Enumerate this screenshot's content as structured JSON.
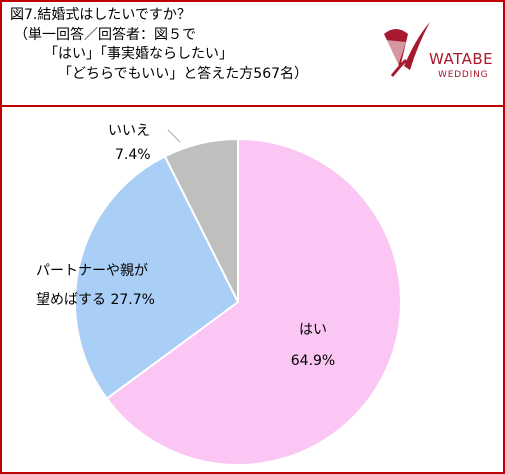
{
  "header": {
    "title_lines": [
      "図7.結婚式はしたいですか？",
      "（単一回答／回答者：図５で",
      "「はい」「事実婚ならしたい」",
      "「どちらでもいい」と答えた方567名）"
    ]
  },
  "logo": {
    "brand": "WATABE",
    "sub": "WEDDING",
    "color": "#a6192e"
  },
  "chart_data": {
    "type": "pie",
    "start": "12 o'clock",
    "direction": "clockwise",
    "slices": [
      {
        "label": "はい",
        "value": 64.9,
        "value_label": "64.9%",
        "color": "#fbc6f3"
      },
      {
        "label": "パートナーや親が望めばする",
        "value": 27.7,
        "value_label": "27.7%",
        "color": "#a9cff7"
      },
      {
        "label": "いいえ",
        "value": 7.4,
        "value_label": "7.4%",
        "color": "#bfbfbf"
      }
    ],
    "label_lines": {
      "hai": [
        "はい",
        "64.9%"
      ],
      "partner": [
        "パートナーや親が",
        "望めばする 27.7%"
      ],
      "iie": [
        "いいえ",
        "7.4%"
      ]
    },
    "edge_color": "#ffffff"
  }
}
